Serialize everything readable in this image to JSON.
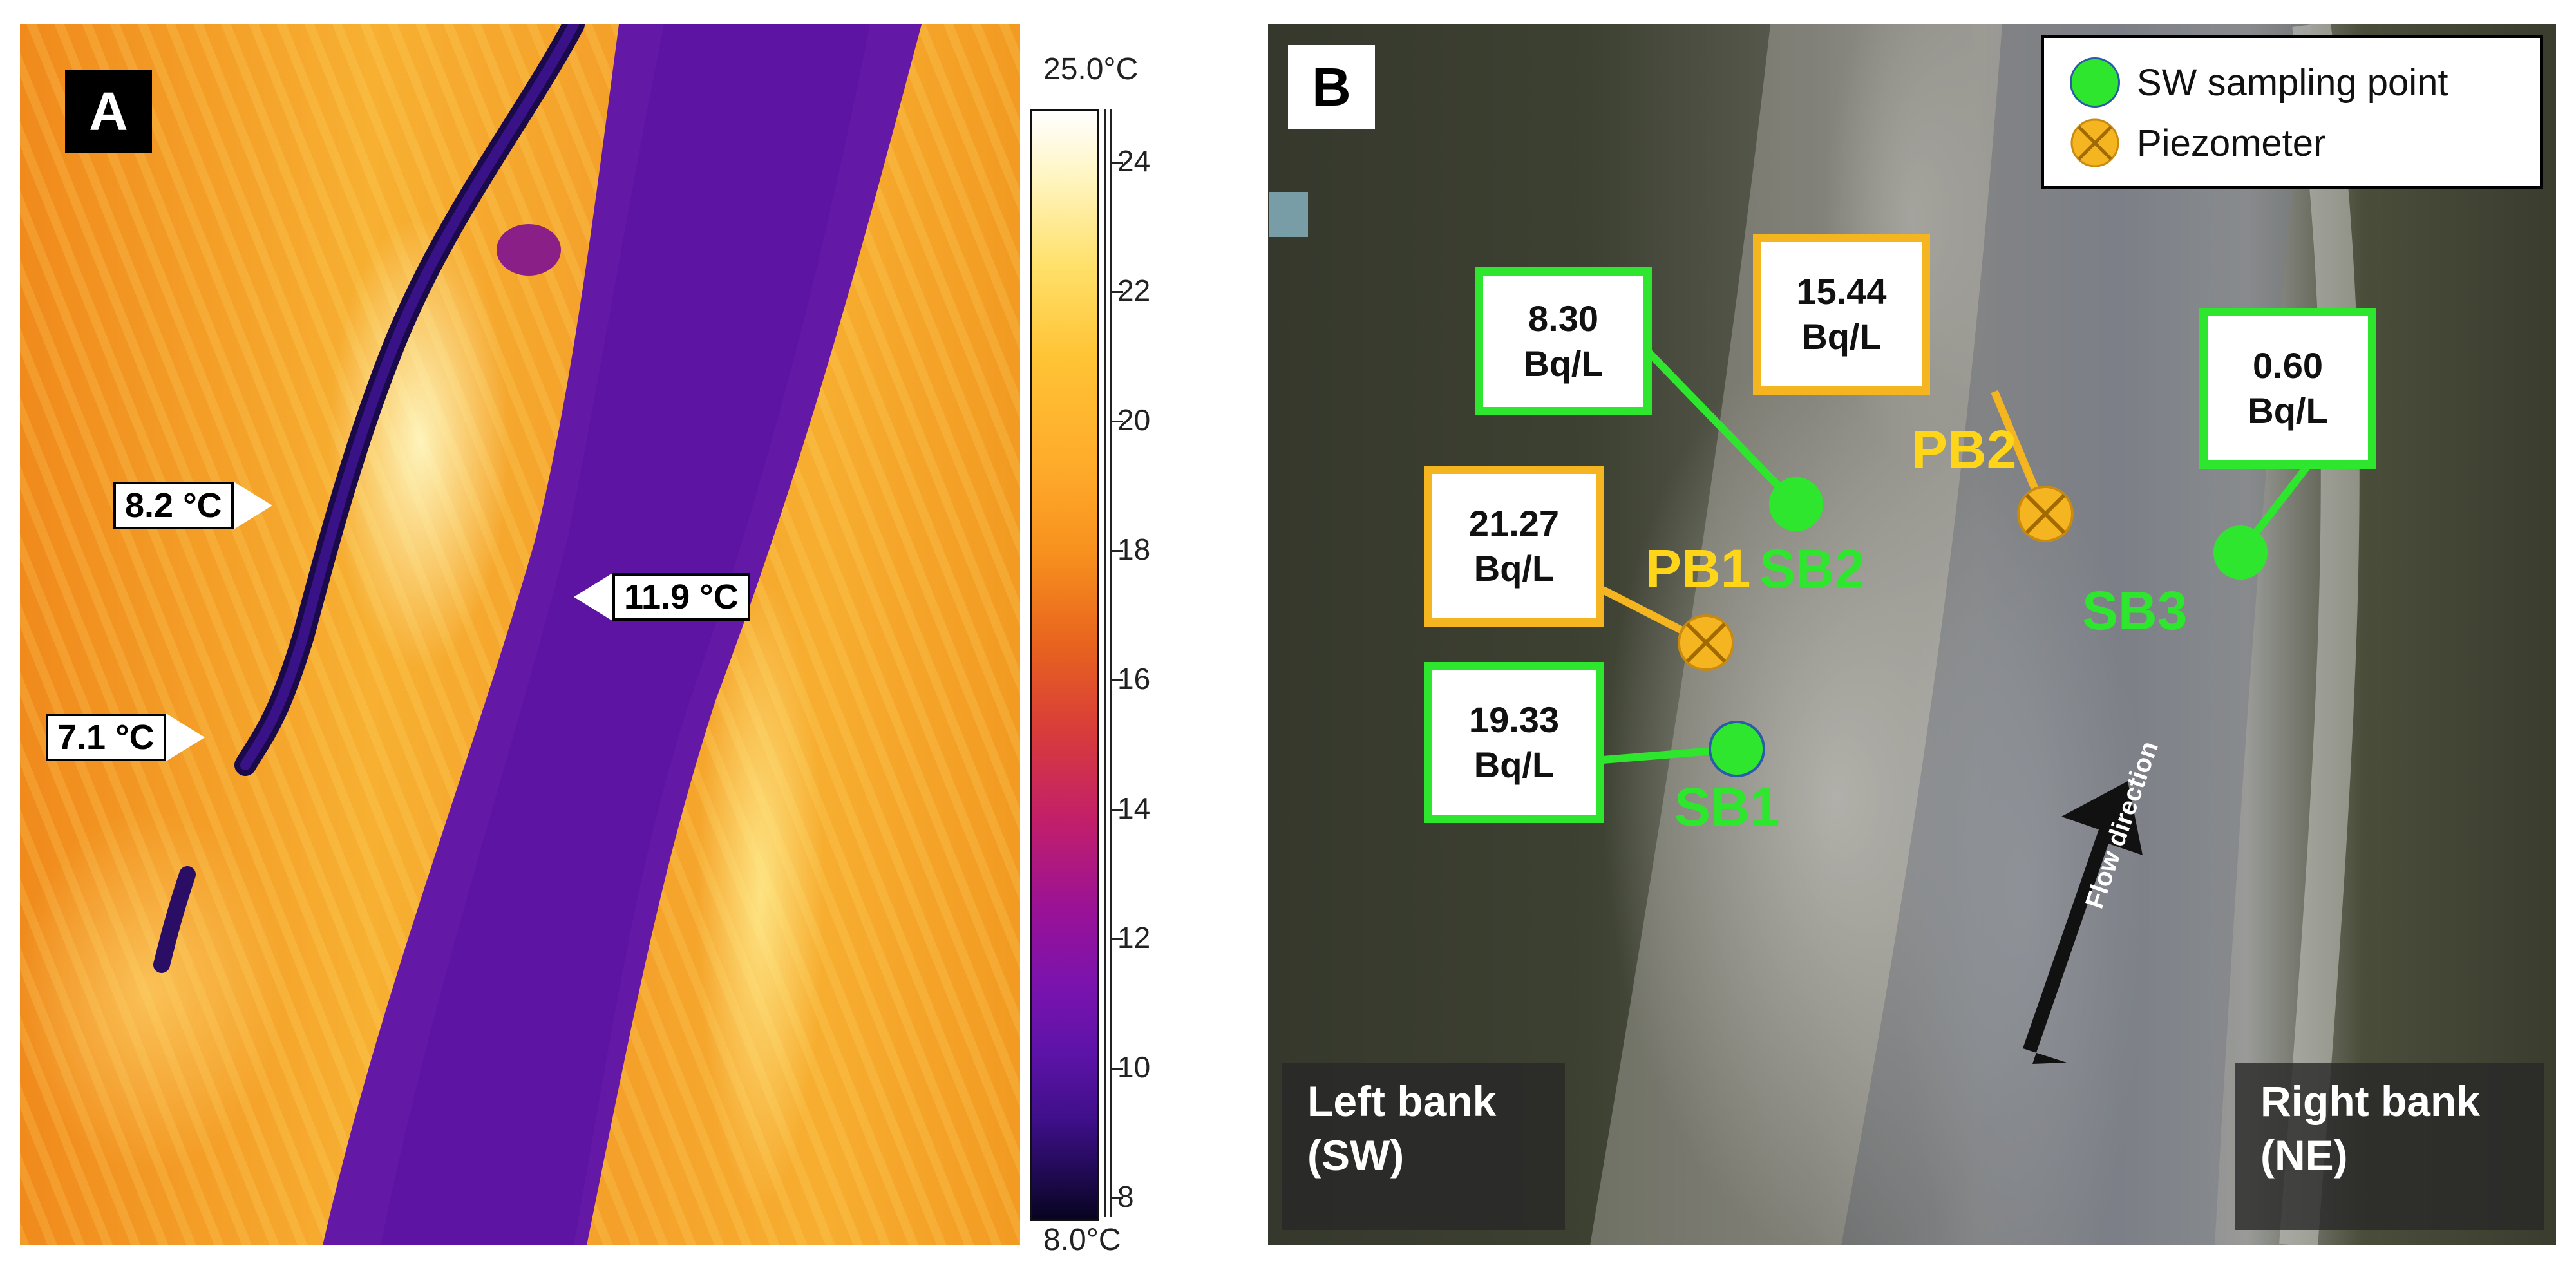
{
  "panel_a": {
    "label": "A",
    "callouts": [
      "8.2 °C",
      "11.9 °C",
      "7.1 °C"
    ],
    "scale": {
      "max_label": "25.0°C",
      "min_label": "8.0°C",
      "ticks": [
        "24",
        "22",
        "20",
        "18",
        "16",
        "14",
        "12",
        "10",
        "8"
      ]
    }
  },
  "panel_b": {
    "label": "B",
    "legend": {
      "sw_label": "SW sampling point",
      "piezo_label": "Piezometer",
      "sw_color": "#2ee62e",
      "piezo_color": "#f5b521"
    },
    "values": {
      "sb2": [
        "8.30",
        "Bq/L"
      ],
      "pb2": [
        "15.44",
        "Bq/L"
      ],
      "sb3": [
        "0.60",
        "Bq/L"
      ],
      "pb1": [
        "21.27",
        "Bq/L"
      ],
      "sb1": [
        "19.33",
        "Bq/L"
      ]
    },
    "points": {
      "pb2": "PB2",
      "pb1": "PB1",
      "sb2": "SB2",
      "sb3": "SB3",
      "sb1": "SB1"
    },
    "flow_label": "Flow direction",
    "left_bank": [
      "Left bank",
      "(SW)"
    ],
    "right_bank": [
      "Right bank",
      "(NE)"
    ]
  }
}
